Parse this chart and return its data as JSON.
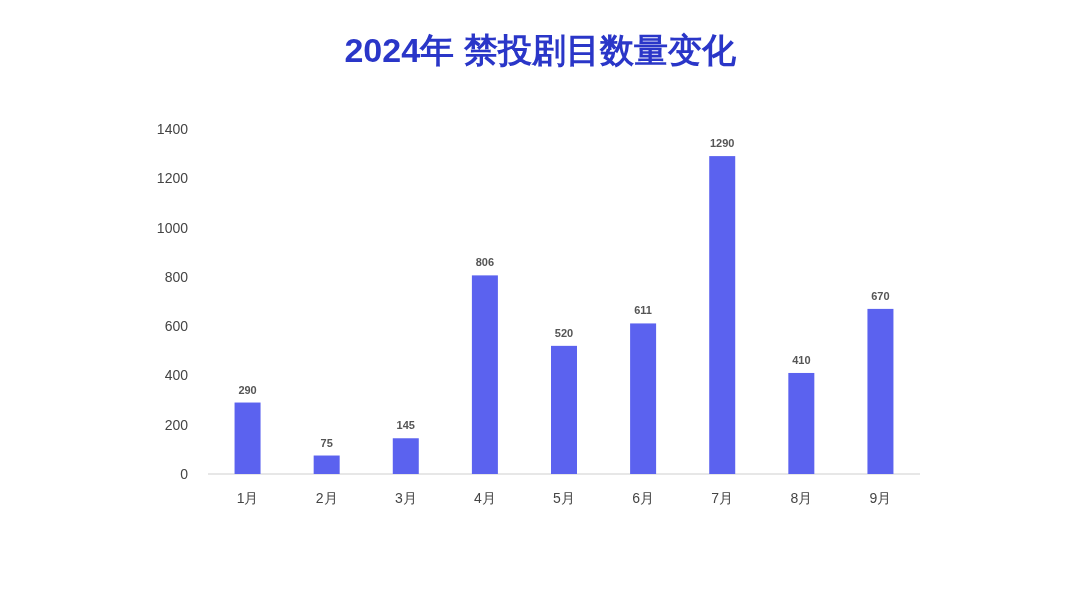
{
  "chart_data": {
    "type": "bar",
    "title": "2024年 禁投剧目数量变化",
    "categories": [
      "1月",
      "2月",
      "3月",
      "4月",
      "5月",
      "6月",
      "7月",
      "8月",
      "9月"
    ],
    "values": [
      290,
      75,
      145,
      806,
      520,
      611,
      1290,
      410,
      670
    ],
    "color": "#5b62ef",
    "ylim": [
      0,
      1400
    ],
    "yticks": [
      0,
      200,
      400,
      600,
      800,
      1000,
      1200,
      1400
    ],
    "grid": false,
    "data_labels": true
  }
}
